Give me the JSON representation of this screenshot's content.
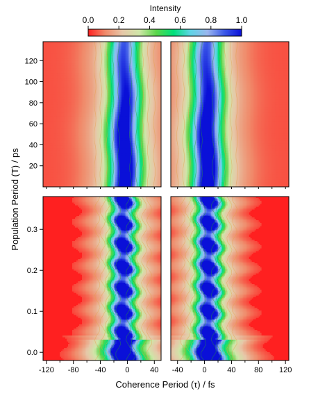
{
  "colorbar": {
    "title": "Intensity",
    "ticks": [
      {
        "value": 0.0,
        "label": "0.0"
      },
      {
        "value": 0.2,
        "label": "0.2"
      },
      {
        "value": 0.4,
        "label": "0.4"
      },
      {
        "value": 0.6,
        "label": "0.6"
      },
      {
        "value": 0.8,
        "label": "0.8"
      },
      {
        "value": 1.0,
        "label": "1.0"
      }
    ],
    "stops": [
      "#ff2020",
      "#f08a6a",
      "#e6c7a8",
      "#cfe6a8",
      "#5ad64a",
      "#00e07a",
      "#5fd4e6",
      "#9ab6ee",
      "#3b58e8",
      "#0a10d8"
    ]
  },
  "axes": {
    "xlabel": "Coherence Period (τ) / fs",
    "ylabel": "Population Period (T) / ps"
  },
  "chart_data": [
    {
      "type": "heatmap",
      "panel": "top-left",
      "x_range": [
        -125,
        50
      ],
      "y_range": [
        0,
        138
      ],
      "y_unit": "ps",
      "x_ticks": [],
      "y_ticks": [
        20,
        40,
        60,
        80,
        100,
        120
      ],
      "y_tick_labels": [
        "20",
        "40",
        "60",
        "80",
        "100",
        "120"
      ],
      "peak_center_x": -4,
      "peak_width_fs": 16,
      "modulated": false
    },
    {
      "type": "heatmap",
      "panel": "top-right",
      "x_range": [
        -50,
        125
      ],
      "y_range": [
        0,
        138
      ],
      "y_unit": "ps",
      "x_ticks": [],
      "y_ticks": [],
      "peak_center_x": 4,
      "peak_width_fs": 16,
      "modulated": false
    },
    {
      "type": "heatmap",
      "panel": "bottom-left",
      "x_range": [
        -125,
        50
      ],
      "y_range": [
        -0.02,
        0.38
      ],
      "y_unit": "ps",
      "x_ticks": [
        -120,
        -80,
        -40,
        0,
        40
      ],
      "x_tick_labels": [
        "-120",
        "-80",
        "-40",
        "0",
        "40"
      ],
      "y_ticks": [
        0.0,
        0.1,
        0.2,
        0.3
      ],
      "y_tick_labels": [
        "0.0",
        "0.1",
        "0.2",
        "0.3"
      ],
      "peak_center_x": -6,
      "peak_width_fs": 14,
      "modulated": true,
      "oscillation_period_ps": 0.054,
      "intensity_maxima_ps": [
        0.045,
        0.1,
        0.165,
        0.22,
        0.275,
        0.33,
        0.375
      ]
    },
    {
      "type": "heatmap",
      "panel": "bottom-right",
      "x_range": [
        -50,
        125
      ],
      "y_range": [
        -0.02,
        0.38
      ],
      "y_unit": "ps",
      "x_ticks": [
        -40,
        0,
        40,
        80,
        120
      ],
      "x_tick_labels": [
        "-40",
        "0",
        "40",
        "80",
        "120"
      ],
      "y_ticks": [],
      "peak_center_x": 6,
      "peak_width_fs": 14,
      "modulated": true,
      "oscillation_period_ps": 0.054,
      "intensity_maxima_ps": [
        0.045,
        0.1,
        0.165,
        0.22,
        0.275,
        0.33,
        0.375
      ]
    }
  ]
}
